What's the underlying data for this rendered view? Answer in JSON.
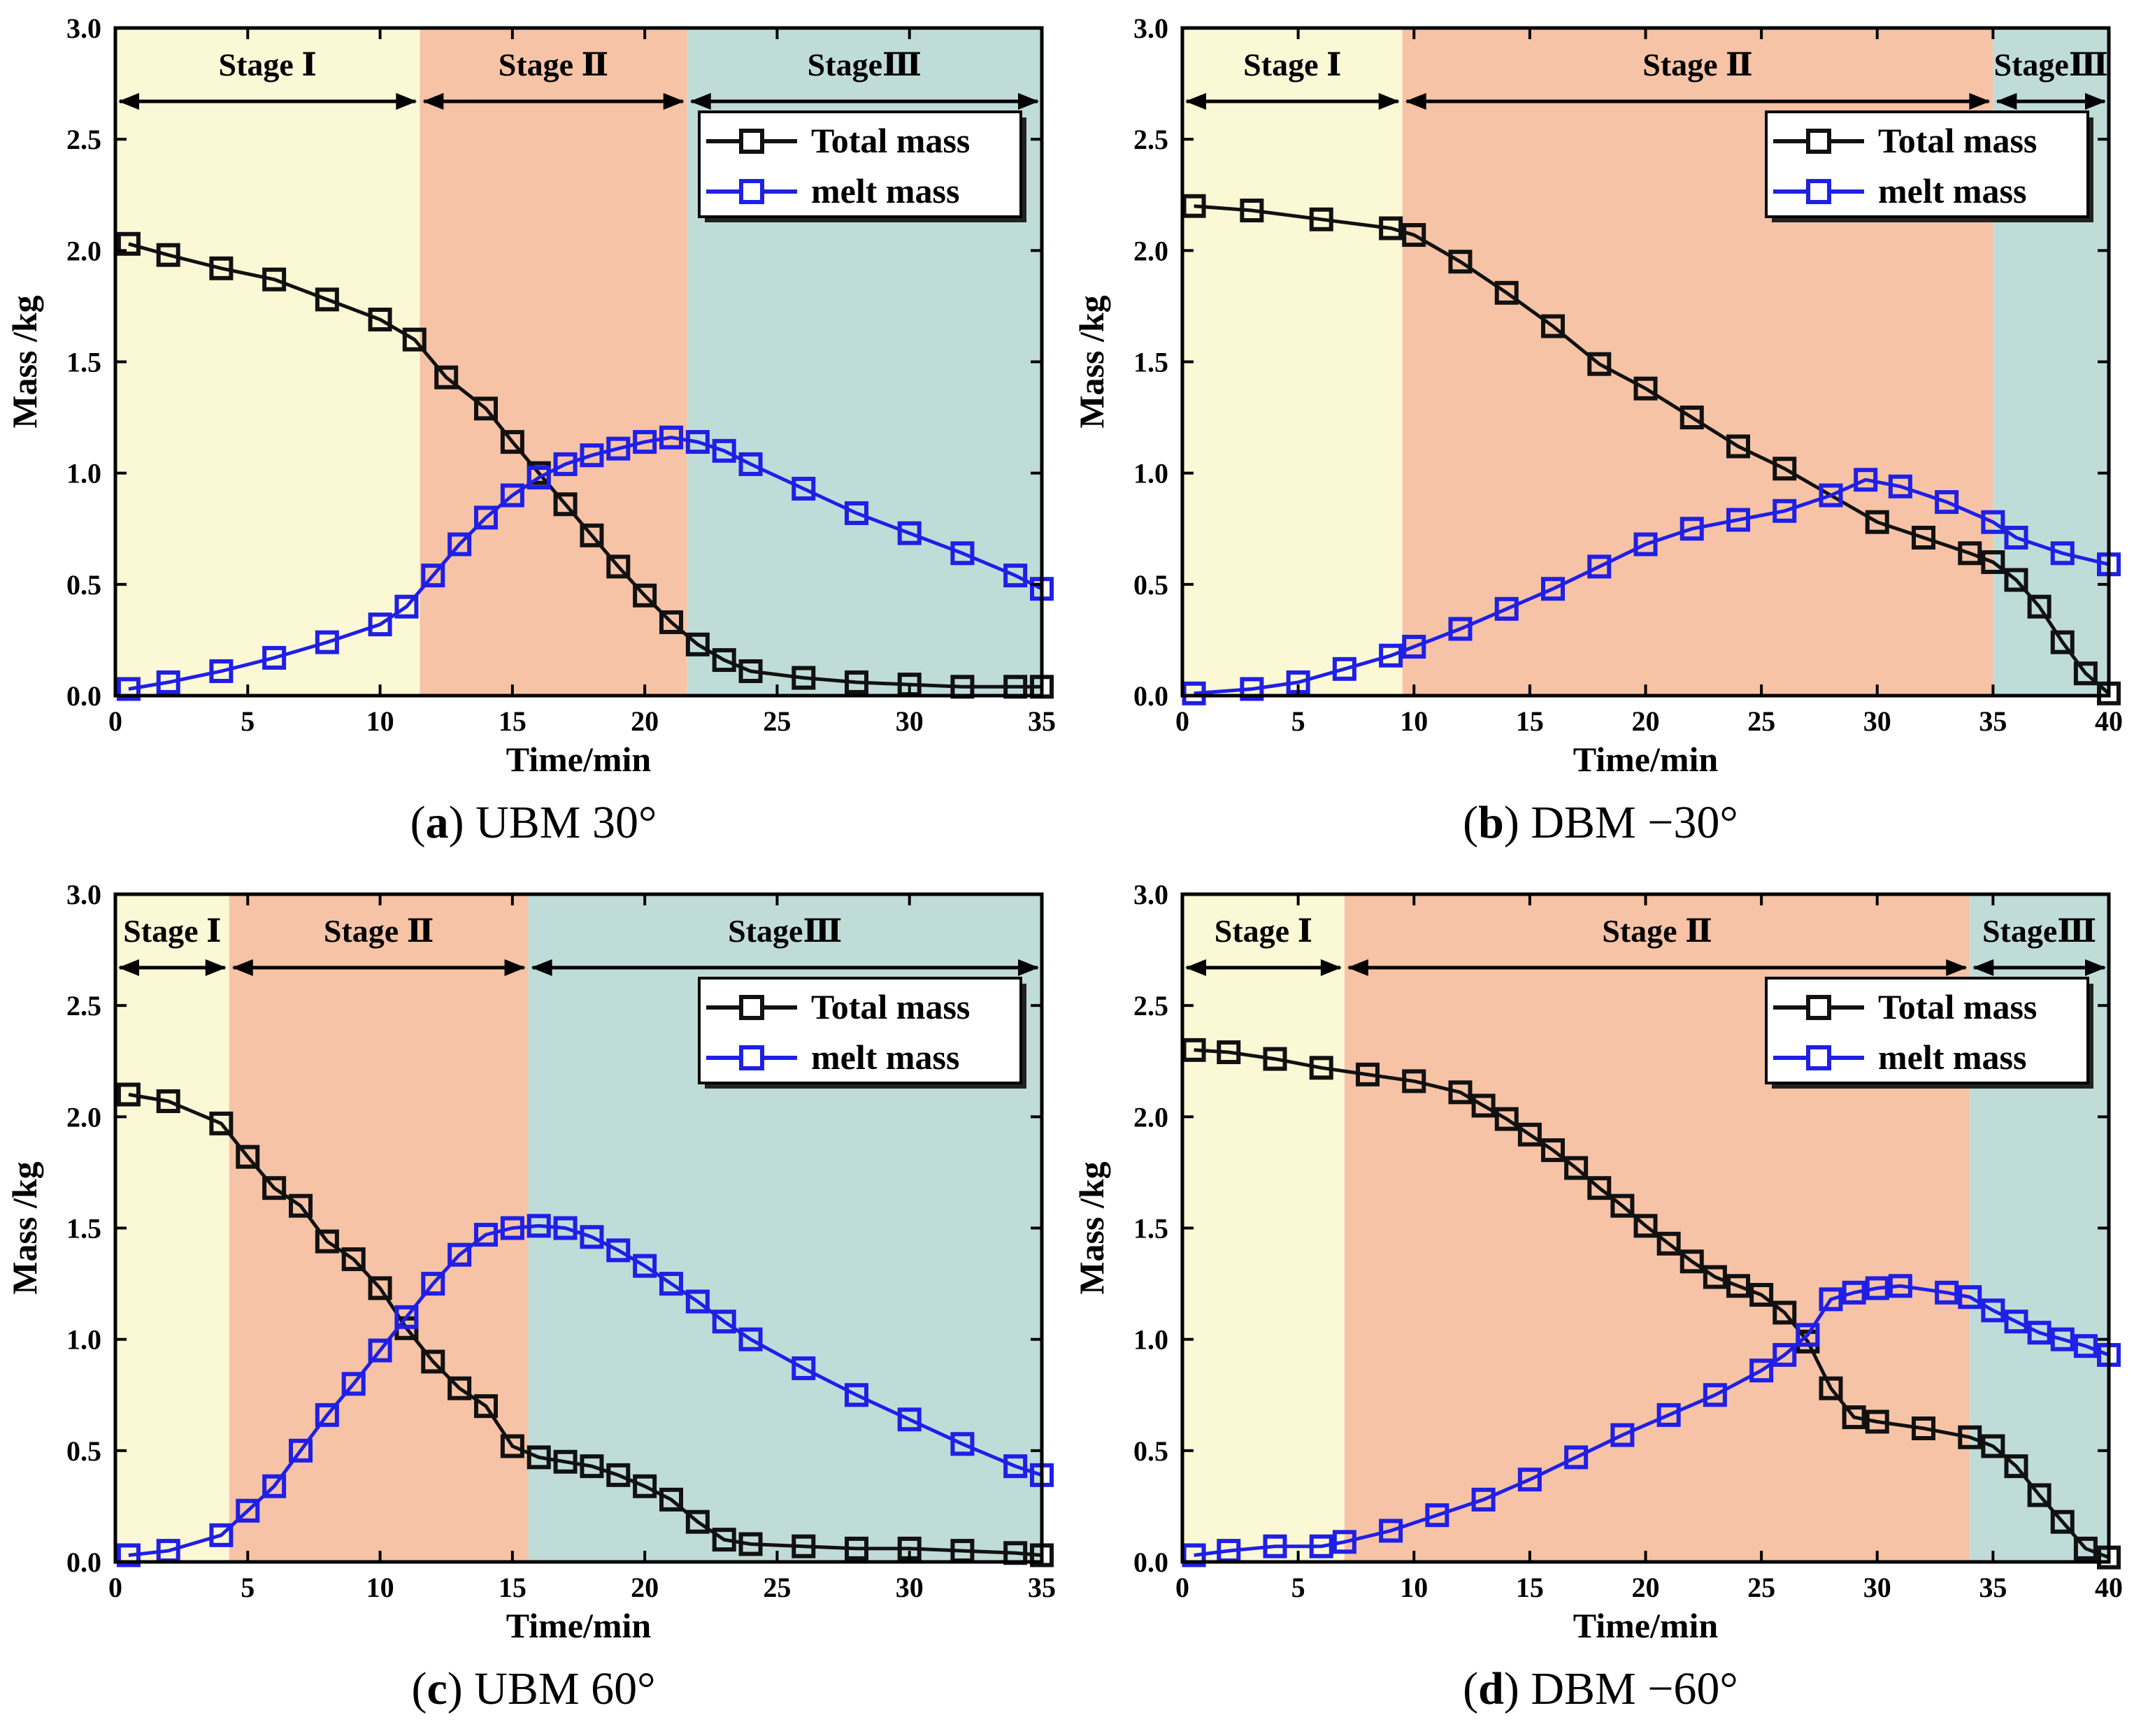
{
  "colors": {
    "stage1": "#fbf8d6",
    "stage2": "#f6c3a6",
    "stage3": "#c0dcd8",
    "total": "#111111",
    "melt": "#1f1fe6"
  },
  "panels": [
    {
      "id": "a",
      "caption_letter": "a",
      "caption_text": " UBM 30°",
      "stage_boundaries": [
        0,
        11.5,
        21.6,
        35
      ],
      "chart_data": {
        "type": "line",
        "xlabel": "Time/min",
        "ylabel": "Mass /kg",
        "xlim": [
          0,
          35
        ],
        "ylim": [
          0,
          3.0
        ],
        "xticks": [
          0,
          5,
          10,
          15,
          20,
          25,
          30,
          35
        ],
        "yticks": [
          0.0,
          0.5,
          1.0,
          1.5,
          2.0,
          2.5,
          3.0
        ],
        "stages": [
          "Stage Ⅰ",
          "Stage Ⅱ",
          "StageⅢ"
        ],
        "legend_position": "top-right",
        "series": [
          {
            "name": "Total mass",
            "marker": "open-square",
            "x": [
              0.5,
              2,
              4,
              6,
              8,
              10,
              11.3,
              12.5,
              14,
              15,
              16,
              17,
              18,
              19,
              20,
              21,
              22,
              23,
              24,
              26,
              28,
              30,
              32,
              34,
              35
            ],
            "y": [
              2.03,
              1.98,
              1.92,
              1.87,
              1.78,
              1.69,
              1.6,
              1.43,
              1.29,
              1.14,
              1.0,
              0.86,
              0.72,
              0.58,
              0.45,
              0.33,
              0.23,
              0.16,
              0.11,
              0.08,
              0.06,
              0.05,
              0.04,
              0.04,
              0.04
            ]
          },
          {
            "name": "melt mass",
            "marker": "open-square",
            "x": [
              0.5,
              2,
              4,
              6,
              8,
              10,
              11,
              12,
              13,
              14,
              15,
              16,
              17,
              18,
              19,
              20,
              21,
              22,
              23,
              24,
              26,
              28,
              30,
              32,
              34,
              35
            ],
            "y": [
              0.03,
              0.06,
              0.11,
              0.17,
              0.24,
              0.32,
              0.4,
              0.54,
              0.68,
              0.8,
              0.9,
              0.98,
              1.04,
              1.08,
              1.11,
              1.14,
              1.16,
              1.14,
              1.1,
              1.04,
              0.93,
              0.82,
              0.73,
              0.64,
              0.54,
              0.48
            ]
          }
        ]
      }
    },
    {
      "id": "b",
      "caption_letter": "b",
      "caption_text": " DBM −30°",
      "stage_boundaries": [
        0,
        9.5,
        35,
        40
      ],
      "chart_data": {
        "type": "line",
        "xlabel": "Time/min",
        "ylabel": "Mass /kg",
        "xlim": [
          0,
          40
        ],
        "ylim": [
          0,
          3.0
        ],
        "xticks": [
          0,
          5,
          10,
          15,
          20,
          25,
          30,
          35,
          40
        ],
        "yticks": [
          0.0,
          0.5,
          1.0,
          1.5,
          2.0,
          2.5,
          3.0
        ],
        "stages": [
          "Stage Ⅰ",
          "Stage Ⅱ",
          "StageⅢ"
        ],
        "legend_position": "top-right",
        "series": [
          {
            "name": "Total mass",
            "marker": "open-square",
            "x": [
              0.5,
              3,
              6,
              9,
              10,
              12,
              14,
              16,
              18,
              20,
              22,
              24,
              26,
              28,
              30,
              32,
              34,
              35,
              36,
              37,
              38,
              39,
              40
            ],
            "y": [
              2.2,
              2.18,
              2.14,
              2.1,
              2.07,
              1.95,
              1.81,
              1.66,
              1.49,
              1.38,
              1.25,
              1.12,
              1.02,
              0.9,
              0.78,
              0.71,
              0.64,
              0.6,
              0.52,
              0.4,
              0.24,
              0.1,
              0.01
            ]
          },
          {
            "name": "melt mass",
            "marker": "open-square",
            "x": [
              0.5,
              3,
              5,
              7,
              9,
              10,
              12,
              14,
              16,
              18,
              20,
              22,
              24,
              26,
              28,
              29.5,
              31,
              33,
              35,
              36,
              38,
              40
            ],
            "y": [
              0.01,
              0.03,
              0.06,
              0.12,
              0.18,
              0.22,
              0.3,
              0.39,
              0.48,
              0.58,
              0.68,
              0.75,
              0.79,
              0.83,
              0.9,
              0.97,
              0.94,
              0.87,
              0.78,
              0.71,
              0.64,
              0.59
            ]
          }
        ]
      }
    },
    {
      "id": "c",
      "caption_letter": "c",
      "caption_text": " UBM 60°",
      "stage_boundaries": [
        0,
        4.3,
        15.6,
        35
      ],
      "chart_data": {
        "type": "line",
        "xlabel": "Time/min",
        "ylabel": "Mass /kg",
        "xlim": [
          0,
          35
        ],
        "ylim": [
          0,
          3.0
        ],
        "xticks": [
          0,
          5,
          10,
          15,
          20,
          25,
          30,
          35
        ],
        "yticks": [
          0.0,
          0.5,
          1.0,
          1.5,
          2.0,
          2.5,
          3.0
        ],
        "stages": [
          "Stage Ⅰ",
          "Stage Ⅱ",
          "StageⅢ"
        ],
        "legend_position": "top-right",
        "series": [
          {
            "name": "Total mass",
            "marker": "open-square",
            "x": [
              0.5,
              2,
              4,
              5,
              6,
              7,
              8,
              9,
              10,
              11,
              12,
              13,
              14,
              15,
              16,
              17,
              18,
              19,
              20,
              21,
              22,
              23,
              24,
              26,
              28,
              30,
              32,
              34,
              35
            ],
            "y": [
              2.1,
              2.07,
              1.97,
              1.82,
              1.68,
              1.6,
              1.44,
              1.36,
              1.23,
              1.05,
              0.9,
              0.78,
              0.7,
              0.52,
              0.47,
              0.45,
              0.43,
              0.39,
              0.34,
              0.28,
              0.18,
              0.1,
              0.08,
              0.07,
              0.06,
              0.06,
              0.05,
              0.04,
              0.03
            ]
          },
          {
            "name": "melt mass",
            "marker": "open-square",
            "x": [
              0.5,
              2,
              4,
              5,
              6,
              7,
              8,
              9,
              10,
              11,
              12,
              13,
              14,
              15,
              16,
              17,
              18,
              19,
              20,
              21,
              22,
              23,
              24,
              26,
              28,
              30,
              32,
              34,
              35
            ],
            "y": [
              0.03,
              0.05,
              0.12,
              0.23,
              0.34,
              0.5,
              0.66,
              0.8,
              0.95,
              1.1,
              1.25,
              1.38,
              1.47,
              1.5,
              1.51,
              1.5,
              1.46,
              1.4,
              1.33,
              1.25,
              1.17,
              1.08,
              1.0,
              0.87,
              0.75,
              0.64,
              0.53,
              0.43,
              0.39
            ]
          }
        ]
      }
    },
    {
      "id": "d",
      "caption_letter": "d",
      "caption_text": " DBM −60°",
      "stage_boundaries": [
        0,
        7,
        34,
        40
      ],
      "chart_data": {
        "type": "line",
        "xlabel": "Time/min",
        "ylabel": "Mass /kg",
        "xlim": [
          0,
          40
        ],
        "ylim": [
          0,
          3.0
        ],
        "xticks": [
          0,
          5,
          10,
          15,
          20,
          25,
          30,
          35,
          40
        ],
        "yticks": [
          0.0,
          0.5,
          1.0,
          1.5,
          2.0,
          2.5,
          3.0
        ],
        "stages": [
          "Stage Ⅰ",
          "Stage Ⅱ",
          "StageⅢ"
        ],
        "legend_position": "top-right",
        "series": [
          {
            "name": "Total mass",
            "marker": "open-square",
            "x": [
              0.5,
              2,
              4,
              6,
              8,
              10,
              12,
              13,
              14,
              15,
              16,
              17,
              18,
              19,
              20,
              21,
              22,
              23,
              24,
              25,
              26,
              27,
              28,
              29,
              30,
              32,
              34,
              35,
              36,
              37,
              38,
              39,
              40
            ],
            "y": [
              2.3,
              2.29,
              2.26,
              2.22,
              2.19,
              2.16,
              2.11,
              2.05,
              1.99,
              1.92,
              1.85,
              1.77,
              1.68,
              1.6,
              1.51,
              1.43,
              1.35,
              1.28,
              1.24,
              1.2,
              1.12,
              0.99,
              0.78,
              0.65,
              0.63,
              0.6,
              0.56,
              0.52,
              0.43,
              0.3,
              0.18,
              0.06,
              0.02
            ]
          },
          {
            "name": "melt mass",
            "marker": "open-square",
            "x": [
              0.5,
              2,
              4,
              6,
              7,
              9,
              11,
              13,
              15,
              17,
              19,
              21,
              23,
              25,
              26,
              27,
              28,
              29,
              30,
              31,
              33,
              34,
              35,
              36,
              37,
              38,
              39,
              40
            ],
            "y": [
              0.03,
              0.05,
              0.07,
              0.07,
              0.09,
              0.14,
              0.21,
              0.28,
              0.37,
              0.47,
              0.57,
              0.66,
              0.75,
              0.86,
              0.93,
              1.02,
              1.18,
              1.21,
              1.23,
              1.24,
              1.21,
              1.19,
              1.13,
              1.08,
              1.03,
              1.0,
              0.97,
              0.93
            ]
          }
        ]
      }
    }
  ]
}
